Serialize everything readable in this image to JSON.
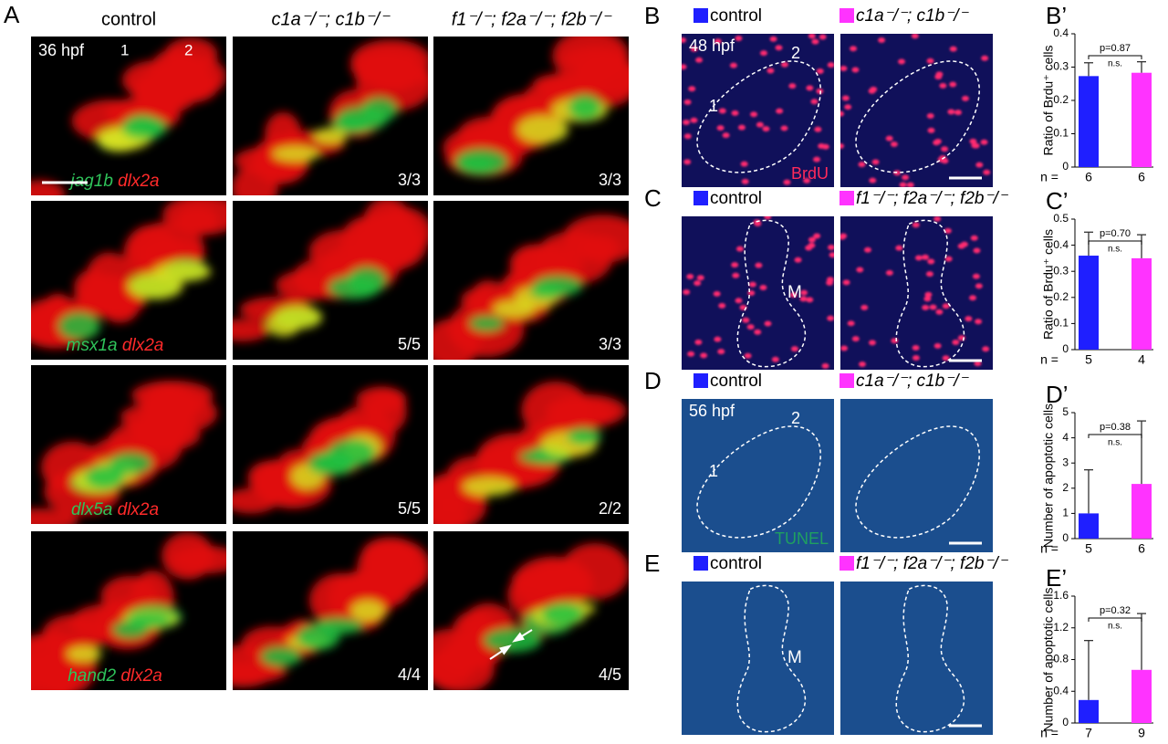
{
  "panel_a": {
    "label": "A",
    "stage": "36 hpf",
    "arch_labels": [
      "1",
      "2"
    ],
    "columns": [
      "control",
      "c1a⁻/⁻; c1b⁻/⁻",
      "f1⁻/⁻; f2a⁻/⁻; f2b⁻/⁻"
    ],
    "rows": [
      {
        "gene": "jag1b",
        "marker": "dlx2a",
        "counts": [
          "3/3",
          "3/3"
        ]
      },
      {
        "gene": "msx1a",
        "marker": "dlx2a",
        "counts": [
          "5/5",
          "3/3"
        ]
      },
      {
        "gene": "dlx5a",
        "marker": "dlx2a",
        "counts": [
          "5/5",
          "2/2"
        ]
      },
      {
        "gene": "hand2",
        "marker": "dlx2a",
        "counts": [
          "4/4",
          "4/5"
        ]
      }
    ]
  },
  "panel_b": {
    "label": "B",
    "legend": [
      "control",
      "c1a⁻/⁻; c1b⁻/⁻"
    ],
    "stage": "48 hpf",
    "arch_labels": [
      "1",
      "2"
    ],
    "stain": "BrdU"
  },
  "panel_c": {
    "label": "C",
    "legend": [
      "control",
      "f1⁻/⁻; f2a⁻/⁻; f2b⁻/⁻"
    ],
    "region": "M"
  },
  "panel_d": {
    "label": "D",
    "legend": [
      "control",
      "c1a⁻/⁻; c1b⁻/⁻"
    ],
    "stage": "56 hpf",
    "arch_labels": [
      "1",
      "2"
    ],
    "stain": "TUNEL"
  },
  "panel_e": {
    "label": "E",
    "legend": [
      "control",
      "f1⁻/⁻; f2a⁻/⁻; f2b⁻/⁻"
    ],
    "region": "M"
  },
  "chart_data": [
    {
      "type": "bar",
      "label": "B’",
      "ylabel": "Ratio of Brdu⁺ cells",
      "ylim": [
        0,
        0.4
      ],
      "yticks": [
        0,
        0.1,
        0.2,
        0.3,
        0.4
      ],
      "n_label": "n =",
      "categories": [
        "6",
        "6"
      ],
      "values": [
        0.273,
        0.283
      ],
      "errors": [
        0.04,
        0.033
      ],
      "colors": [
        "#1f1fff",
        "#ff33ff"
      ],
      "p_value": "p=0.87",
      "significance": "n.s."
    },
    {
      "type": "bar",
      "label": "C’",
      "ylabel": "Ratio of Brdu⁺ cells",
      "ylim": [
        0,
        0.5
      ],
      "yticks": [
        0,
        0.1,
        0.2,
        0.3,
        0.4,
        0.5
      ],
      "n_label": "n =",
      "categories": [
        "5",
        "4"
      ],
      "values": [
        0.36,
        0.35
      ],
      "errors": [
        0.09,
        0.09
      ],
      "colors": [
        "#1f1fff",
        "#ff33ff"
      ],
      "p_value": "p=0.70",
      "significance": "n.s."
    },
    {
      "type": "bar",
      "label": "D’",
      "ylabel": "Number of apoptotic cells",
      "ylim": [
        0,
        5
      ],
      "yticks": [
        0,
        1,
        2,
        3,
        4,
        5
      ],
      "n_label": "n =",
      "categories": [
        "5",
        "6"
      ],
      "values": [
        1.0,
        2.17
      ],
      "errors": [
        1.73,
        2.5
      ],
      "colors": [
        "#1f1fff",
        "#ff33ff"
      ],
      "p_value": "p=0.38",
      "significance": "n.s."
    },
    {
      "type": "bar",
      "label": "E’",
      "ylabel": "Number of apoptotic cells",
      "ylim": [
        0,
        1.6
      ],
      "yticks": [
        0,
        0.4,
        0.8,
        1.2,
        1.6
      ],
      "n_label": "n =",
      "categories": [
        "7",
        "9"
      ],
      "values": [
        0.29,
        0.67
      ],
      "errors": [
        0.75,
        0.71
      ],
      "colors": [
        "#1f1fff",
        "#ff33ff"
      ],
      "p_value": "p=0.32",
      "significance": "n.s."
    }
  ]
}
